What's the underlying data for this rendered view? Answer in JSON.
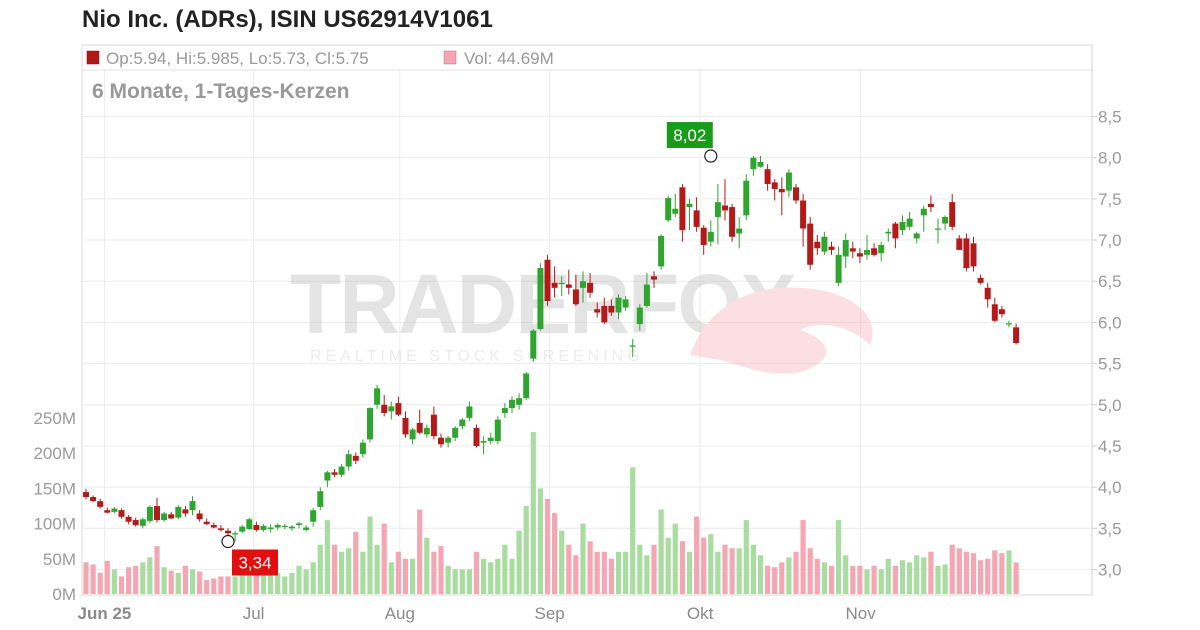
{
  "chart_data": {
    "type": "candlestick",
    "title": "Nio Inc. (ADRs), ISIN US62914V1061",
    "subtitle": "6 Monate, 1-Tages-Kerzen",
    "legend": {
      "ohlc": "Op:5.94, Hi:5.985, Lo:5.73, Cl:5.75",
      "volume": "Vol: 44.69M",
      "ohlc_color": "#b01818",
      "volume_color": "#f4a6b2"
    },
    "watermark": {
      "main": "TRADERFOX",
      "sub": "REALTIME STOCK SCREENING"
    },
    "price_axis": {
      "ticks": [
        "3,0",
        "3,5",
        "4,0",
        "4,5",
        "5,0",
        "5,5",
        "6,0",
        "6,5",
        "7,0",
        "7,5",
        "8,0",
        "8,5"
      ],
      "range": [
        2.7,
        9.0
      ]
    },
    "volume_axis": {
      "ticks": [
        "0M",
        "50M",
        "100M",
        "150M",
        "200M",
        "250M"
      ],
      "range": [
        0,
        250
      ]
    },
    "month_labels": [
      {
        "label": "Jun 25",
        "index": 2.6
      },
      {
        "label": "Jul",
        "index": 23.6
      },
      {
        "label": "Aug",
        "index": 44.2
      },
      {
        "label": "Sep",
        "index": 65.3
      },
      {
        "label": "Okt",
        "index": 86.5
      },
      {
        "label": "Nov",
        "index": 109.1
      }
    ],
    "annotations": [
      {
        "label": "8,02",
        "index": 88,
        "value": 8.02,
        "kind": "high",
        "color": "#1a9c1a"
      },
      {
        "label": "3,34",
        "index": 20,
        "value": 3.34,
        "kind": "low",
        "color": "#e01010"
      }
    ],
    "candles": [
      [
        3.94,
        3.98,
        3.85,
        3.88,
        45
      ],
      [
        3.88,
        3.9,
        3.82,
        3.83,
        42
      ],
      [
        3.83,
        3.86,
        3.74,
        3.76,
        30
      ],
      [
        3.72,
        3.75,
        3.68,
        3.69,
        47
      ],
      [
        3.7,
        3.76,
        3.68,
        3.74,
        35
      ],
      [
        3.72,
        3.74,
        3.62,
        3.64,
        25
      ],
      [
        3.64,
        3.66,
        3.55,
        3.58,
        38
      ],
      [
        3.6,
        3.63,
        3.52,
        3.54,
        40
      ],
      [
        3.53,
        3.63,
        3.5,
        3.61,
        45
      ],
      [
        3.59,
        3.78,
        3.56,
        3.76,
        52
      ],
      [
        3.77,
        3.87,
        3.57,
        3.6,
        68
      ],
      [
        3.6,
        3.7,
        3.58,
        3.68,
        38
      ],
      [
        3.67,
        3.7,
        3.61,
        3.62,
        33
      ],
      [
        3.63,
        3.78,
        3.61,
        3.76,
        30
      ],
      [
        3.73,
        3.77,
        3.64,
        3.68,
        40
      ],
      [
        3.72,
        3.89,
        3.66,
        3.83,
        35
      ],
      [
        3.68,
        3.72,
        3.58,
        3.61,
        32
      ],
      [
        3.58,
        3.62,
        3.54,
        3.55,
        20
      ],
      [
        3.54,
        3.57,
        3.5,
        3.51,
        22
      ],
      [
        3.5,
        3.54,
        3.46,
        3.48,
        25
      ],
      [
        3.47,
        3.5,
        3.41,
        3.44,
        25
      ],
      [
        3.43,
        3.47,
        3.34,
        3.44,
        25
      ],
      [
        3.46,
        3.54,
        3.44,
        3.52,
        45
      ],
      [
        3.49,
        3.63,
        3.48,
        3.61,
        35
      ],
      [
        3.54,
        3.58,
        3.46,
        3.48,
        30
      ],
      [
        3.48,
        3.55,
        3.46,
        3.53,
        28
      ],
      [
        3.49,
        3.55,
        3.45,
        3.51,
        35
      ],
      [
        3.51,
        3.56,
        3.48,
        3.54,
        30
      ],
      [
        3.52,
        3.55,
        3.49,
        3.53,
        25
      ],
      [
        3.5,
        3.54,
        3.47,
        3.52,
        30
      ],
      [
        3.54,
        3.58,
        3.5,
        3.56,
        40
      ],
      [
        3.48,
        3.54,
        3.46,
        3.51,
        35
      ],
      [
        3.58,
        3.75,
        3.52,
        3.72,
        45
      ],
      [
        3.76,
        4.0,
        3.72,
        3.95,
        70
      ],
      [
        4.08,
        4.2,
        4.0,
        4.18,
        105
      ],
      [
        4.18,
        4.22,
        4.12,
        4.15,
        70
      ],
      [
        4.15,
        4.28,
        4.12,
        4.25,
        60
      ],
      [
        4.25,
        4.45,
        4.2,
        4.4,
        65
      ],
      [
        4.38,
        4.42,
        4.28,
        4.32,
        88
      ],
      [
        4.4,
        4.58,
        4.36,
        4.54,
        60
      ],
      [
        4.58,
        4.97,
        4.54,
        4.96,
        110
      ],
      [
        5.0,
        5.24,
        4.95,
        5.2,
        70
      ],
      [
        5.0,
        5.12,
        4.86,
        4.9,
        100
      ],
      [
        4.92,
        5.04,
        4.82,
        4.98,
        45
      ],
      [
        5.02,
        5.1,
        4.86,
        4.88,
        60
      ],
      [
        4.84,
        4.92,
        4.6,
        4.64,
        50
      ],
      [
        4.58,
        4.72,
        4.52,
        4.7,
        50
      ],
      [
        4.78,
        4.94,
        4.64,
        4.66,
        120
      ],
      [
        4.64,
        4.76,
        4.6,
        4.72,
        80
      ],
      [
        4.88,
        4.98,
        4.58,
        4.62,
        60
      ],
      [
        4.6,
        4.65,
        4.48,
        4.52,
        68
      ],
      [
        4.54,
        4.62,
        4.48,
        4.6,
        40
      ],
      [
        4.6,
        4.74,
        4.56,
        4.72,
        35
      ],
      [
        4.74,
        4.84,
        4.7,
        4.82,
        35
      ],
      [
        4.84,
        5.04,
        4.8,
        4.98,
        35
      ],
      [
        4.72,
        4.76,
        4.48,
        4.5,
        60
      ],
      [
        4.54,
        4.62,
        4.4,
        4.56,
        50
      ],
      [
        4.56,
        4.66,
        4.52,
        4.6,
        45
      ],
      [
        4.56,
        4.86,
        4.52,
        4.82,
        50
      ],
      [
        4.9,
        5.02,
        4.84,
        4.96,
        70
      ],
      [
        4.96,
        5.1,
        4.9,
        5.06,
        50
      ],
      [
        5.0,
        5.14,
        4.94,
        5.08,
        90
      ],
      [
        5.08,
        5.4,
        5.06,
        5.38,
        125
      ],
      [
        5.56,
        5.92,
        5.52,
        5.9,
        230
      ],
      [
        5.92,
        6.72,
        5.9,
        6.66,
        150
      ],
      [
        6.76,
        6.82,
        6.2,
        6.26,
        135
      ],
      [
        6.48,
        6.68,
        6.3,
        6.42,
        115
      ],
      [
        6.48,
        6.56,
        6.32,
        6.48,
        90
      ],
      [
        6.46,
        6.64,
        6.34,
        6.42,
        70
      ],
      [
        6.4,
        6.58,
        6.2,
        6.22,
        55
      ],
      [
        6.42,
        6.62,
        6.24,
        6.5,
        100
      ],
      [
        6.48,
        6.6,
        6.3,
        6.36,
        75
      ],
      [
        6.16,
        6.24,
        6.06,
        6.12,
        60
      ],
      [
        6.2,
        6.3,
        5.98,
        6.0,
        60
      ],
      [
        6.2,
        6.28,
        6.08,
        6.12,
        50
      ],
      [
        6.12,
        6.34,
        6.04,
        6.3,
        60
      ],
      [
        6.18,
        6.32,
        6.14,
        6.28,
        60
      ],
      [
        5.72,
        5.8,
        5.58,
        5.72,
        180
      ],
      [
        5.98,
        6.22,
        5.9,
        6.18,
        70
      ],
      [
        6.2,
        6.6,
        6.18,
        6.46,
        55
      ],
      [
        6.56,
        6.62,
        6.42,
        6.52,
        70
      ],
      [
        6.68,
        7.07,
        6.64,
        7.05,
        120
      ],
      [
        7.24,
        7.54,
        7.22,
        7.51,
        80
      ],
      [
        7.32,
        7.56,
        7.28,
        7.38,
        100
      ],
      [
        7.64,
        7.68,
        6.98,
        7.12,
        75
      ],
      [
        7.4,
        7.5,
        7.12,
        7.44,
        60
      ],
      [
        7.36,
        7.52,
        7.1,
        7.16,
        110
      ],
      [
        7.15,
        7.18,
        6.82,
        6.94,
        80
      ],
      [
        6.98,
        7.24,
        6.92,
        7.1,
        85
      ],
      [
        7.28,
        7.68,
        6.95,
        7.46,
        60
      ],
      [
        7.42,
        7.74,
        7.24,
        7.36,
        70
      ],
      [
        7.4,
        7.44,
        6.98,
        7.04,
        65
      ],
      [
        7.08,
        7.28,
        6.9,
        7.14,
        65
      ],
      [
        7.3,
        7.8,
        7.24,
        7.72,
        105
      ],
      [
        7.86,
        8.02,
        7.78,
        8.0,
        70
      ],
      [
        7.89,
        8.02,
        7.88,
        7.95,
        55
      ],
      [
        7.86,
        7.92,
        7.6,
        7.68,
        40
      ],
      [
        7.7,
        7.74,
        7.48,
        7.62,
        38
      ],
      [
        7.62,
        7.76,
        7.3,
        7.58,
        45
      ],
      [
        7.6,
        7.86,
        7.52,
        7.82,
        52
      ],
      [
        7.64,
        7.68,
        7.44,
        7.48,
        60
      ],
      [
        7.48,
        7.56,
        6.92,
        7.14,
        105
      ],
      [
        7.2,
        7.28,
        6.64,
        6.7,
        65
      ],
      [
        6.98,
        7.06,
        6.82,
        6.9,
        50
      ],
      [
        6.86,
        7.1,
        6.82,
        7.04,
        45
      ],
      [
        6.92,
        6.98,
        6.82,
        6.88,
        40
      ],
      [
        6.48,
        6.92,
        6.44,
        6.82,
        105
      ],
      [
        6.8,
        7.08,
        6.66,
        7.0,
        55
      ],
      [
        6.9,
        6.98,
        6.78,
        6.86,
        40
      ],
      [
        6.84,
        6.9,
        6.72,
        6.8,
        40
      ],
      [
        6.82,
        7.06,
        6.76,
        6.88,
        35
      ],
      [
        6.9,
        6.96,
        6.8,
        6.82,
        40
      ],
      [
        6.84,
        6.98,
        6.74,
        6.94,
        35
      ],
      [
        7.08,
        7.14,
        6.98,
        7.1,
        50
      ],
      [
        7.2,
        7.22,
        6.9,
        7.02,
        40
      ],
      [
        7.12,
        7.3,
        7.06,
        7.22,
        48
      ],
      [
        7.16,
        7.34,
        7.12,
        7.26,
        45
      ],
      [
        7.02,
        7.1,
        6.96,
        7.08,
        55
      ],
      [
        7.3,
        7.42,
        7.1,
        7.38,
        52
      ],
      [
        7.44,
        7.54,
        7.34,
        7.4,
        60
      ],
      [
        7.14,
        7.26,
        6.96,
        7.14,
        40
      ],
      [
        7.2,
        7.3,
        7.12,
        7.28,
        42
      ],
      [
        7.46,
        7.56,
        7.12,
        7.16,
        70
      ],
      [
        7.02,
        7.06,
        6.88,
        6.88,
        65
      ],
      [
        7.02,
        7.08,
        6.62,
        6.66,
        60
      ],
      [
        6.96,
        7.04,
        6.62,
        6.68,
        58
      ],
      [
        6.54,
        6.58,
        6.46,
        6.48,
        48
      ],
      [
        6.42,
        6.48,
        6.18,
        6.28,
        50
      ],
      [
        6.22,
        6.3,
        6.0,
        6.02,
        62
      ],
      [
        6.16,
        6.2,
        6.06,
        6.1,
        58
      ],
      [
        5.98,
        6.02,
        5.94,
        5.99,
        62
      ],
      [
        5.94,
        5.985,
        5.73,
        5.75,
        44.69
      ]
    ]
  }
}
